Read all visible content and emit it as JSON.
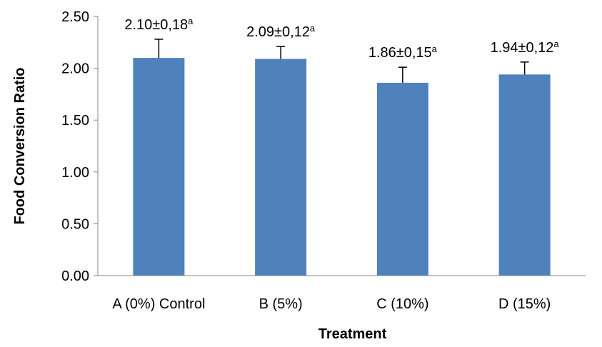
{
  "chart_data": {
    "type": "bar",
    "xlabel": "Treatment",
    "ylabel": "Food Conversion Ratio",
    "ylim": [
      0,
      2.5
    ],
    "yticks": [
      "0.00",
      "0.50",
      "1.00",
      "1.50",
      "2.00",
      "2.50"
    ],
    "grid": false,
    "categories": [
      "A (0%) Control",
      "B (5%)",
      "C (10%)",
      "D (15%)"
    ],
    "values": [
      2.1,
      2.09,
      1.86,
      1.94
    ],
    "errors": [
      0.18,
      0.12,
      0.15,
      0.12
    ],
    "data_labels": [
      "2.10±0,18",
      "2.09±0,12",
      "1.86±0,15",
      "1.94±0,12"
    ],
    "significance": [
      "a",
      "a",
      "a",
      "a"
    ],
    "bar_color": "#4F81BD"
  }
}
